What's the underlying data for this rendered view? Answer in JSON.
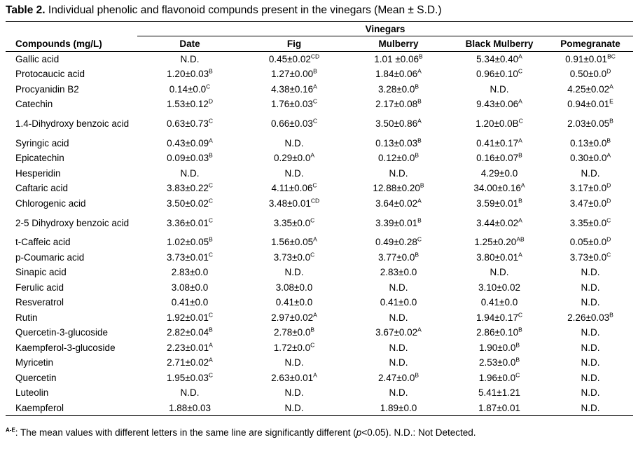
{
  "caption": {
    "label": "Table 2.",
    "text": " Individual phenolic and flavonoid compunds present in the vinegars (Mean ± S.D.)"
  },
  "group_header": "Vinegars",
  "columns": [
    "Compounds (mg/L)",
    "Date",
    "Fig",
    "Mulberry",
    "Black Mulberry",
    "Pomegranate"
  ],
  "rows": [
    {
      "name": "Gallic acid",
      "cells": [
        [
          "N.D.",
          ""
        ],
        [
          "0.45±0.02",
          "CD"
        ],
        [
          "1.01 ±0.06",
          "B"
        ],
        [
          "5.34±0.40",
          "A"
        ],
        [
          "0.91±0.01",
          "BC"
        ]
      ]
    },
    {
      "name": "Protocaucic acid",
      "cells": [
        [
          "1.20±0.03",
          "B"
        ],
        [
          "1.27±0.00",
          "B"
        ],
        [
          "1.84±0.06",
          "A"
        ],
        [
          "0.96±0.10",
          "C"
        ],
        [
          "0.50±0.0",
          "D"
        ]
      ]
    },
    {
      "name": "Procyanidin B2",
      "cells": [
        [
          "0.14±0.0",
          "C"
        ],
        [
          "4.38±0.16",
          "A"
        ],
        [
          "3.28±0.0",
          "B"
        ],
        [
          "N.D.",
          ""
        ],
        [
          "4.25±0.02",
          "A"
        ]
      ]
    },
    {
      "name": "Catechin",
      "cells": [
        [
          "1.53±0.12",
          "D"
        ],
        [
          "1.76±0.03",
          "C"
        ],
        [
          "2.17±0.08",
          "B"
        ],
        [
          "9.43±0.06",
          "A"
        ],
        [
          "0.94±0.01",
          "E"
        ]
      ]
    },
    {
      "name": "1.4-Dihydroxy benzoic acid",
      "tall": true,
      "cells": [
        [
          "0.63±0.73",
          "C"
        ],
        [
          "0.66±0.03",
          "C"
        ],
        [
          "3.50±0.86",
          "A"
        ],
        [
          "1.20±0.0B",
          "C"
        ],
        [
          "2.03±0.05",
          "B"
        ]
      ]
    },
    {
      "name": "Syringic acid",
      "cells": [
        [
          "0.43±0.09",
          "A"
        ],
        [
          "N.D.",
          ""
        ],
        [
          "0.13±0.03",
          "B"
        ],
        [
          "0.41±0.17",
          "A"
        ],
        [
          "0.13±0.0",
          "B"
        ]
      ]
    },
    {
      "name": "Epicatechin",
      "cells": [
        [
          "0.09±0.03",
          "B"
        ],
        [
          "0.29±0.0",
          "A"
        ],
        [
          "0.12±0.0",
          "B"
        ],
        [
          "0.16±0.07",
          "B"
        ],
        [
          "0.30±0.0",
          "A"
        ]
      ]
    },
    {
      "name": "Hesperidin",
      "cells": [
        [
          "N.D.",
          ""
        ],
        [
          "N.D.",
          ""
        ],
        [
          "N.D.",
          ""
        ],
        [
          "4.29±0.0",
          ""
        ],
        [
          "N.D.",
          ""
        ]
      ]
    },
    {
      "name": "Caftaric acid",
      "cells": [
        [
          "3.83±0.22",
          "C"
        ],
        [
          "4.11±0.06",
          "C"
        ],
        [
          "12.88±0.20",
          "B"
        ],
        [
          "34.00±0.16",
          "A"
        ],
        [
          "3.17±0.0",
          "D"
        ]
      ]
    },
    {
      "name": "Chlorogenic acid",
      "cells": [
        [
          "3.50±0.02",
          "C"
        ],
        [
          "3.48±0.01",
          "CD"
        ],
        [
          "3.64±0.02",
          "A"
        ],
        [
          "3.59±0.01",
          "B"
        ],
        [
          "3.47±0.0",
          "D"
        ]
      ]
    },
    {
      "name": "2-5 Dihydroxy benzoic acid",
      "tall": true,
      "cells": [
        [
          "3.36±0.01",
          "C"
        ],
        [
          "3.35±0.0",
          "C"
        ],
        [
          "3.39±0.01",
          "B"
        ],
        [
          "3.44±0.02",
          "A"
        ],
        [
          "3.35±0.0",
          "C"
        ]
      ]
    },
    {
      "name": "t-Caffeic acid",
      "cells": [
        [
          "1.02±0.05",
          "B"
        ],
        [
          "1.56±0.05",
          "A"
        ],
        [
          "0.49±0.28",
          "C"
        ],
        [
          "1.25±0.20",
          "AB"
        ],
        [
          "0.05±0.0",
          "D"
        ]
      ]
    },
    {
      "name": "p-Coumaric acid",
      "cells": [
        [
          "3.73±0.01",
          "C"
        ],
        [
          "3.73±0.0",
          "C"
        ],
        [
          "3.77±0.0",
          "B"
        ],
        [
          "3.80±0.01",
          "A"
        ],
        [
          "3.73±0.0",
          "C"
        ]
      ]
    },
    {
      "name": "Sinapic acid",
      "cells": [
        [
          "2.83±0.0",
          ""
        ],
        [
          "N.D.",
          ""
        ],
        [
          "2.83±0.0",
          ""
        ],
        [
          "N.D.",
          ""
        ],
        [
          "N.D.",
          ""
        ]
      ]
    },
    {
      "name": "Ferulic acid",
      "cells": [
        [
          "3.08±0.0",
          ""
        ],
        [
          "3.08±0.0",
          ""
        ],
        [
          "N.D.",
          ""
        ],
        [
          "3.10±0.02",
          ""
        ],
        [
          "N.D.",
          ""
        ]
      ]
    },
    {
      "name": "Resveratrol",
      "cells": [
        [
          "0.41±0.0",
          ""
        ],
        [
          "0.41±0.0",
          ""
        ],
        [
          "0.41±0.0",
          ""
        ],
        [
          "0.41±0.0",
          ""
        ],
        [
          "N.D.",
          ""
        ]
      ]
    },
    {
      "name": "Rutin",
      "cells": [
        [
          "1.92±0.01",
          "C"
        ],
        [
          "2.97±0.02",
          "A"
        ],
        [
          "N.D.",
          ""
        ],
        [
          "1.94±0.17",
          "C"
        ],
        [
          "2.26±0.03",
          "B"
        ]
      ]
    },
    {
      "name": "Quercetin-3-glucoside",
      "cells": [
        [
          "2.82±0.04",
          "B"
        ],
        [
          "2.78±0.0",
          "B"
        ],
        [
          "3.67±0.02",
          "A"
        ],
        [
          "2.86±0.10",
          "B"
        ],
        [
          "N.D.",
          ""
        ]
      ]
    },
    {
      "name": "Kaempferol-3-glucoside",
      "cells": [
        [
          "2.23±0.01",
          "A"
        ],
        [
          "1.72±0.0",
          "C"
        ],
        [
          "N.D.",
          ""
        ],
        [
          "1.90±0.0",
          "B"
        ],
        [
          "N.D.",
          ""
        ]
      ]
    },
    {
      "name": "Myricetin",
      "cells": [
        [
          "2.71±0.02",
          "A"
        ],
        [
          "N.D.",
          ""
        ],
        [
          "N.D.",
          ""
        ],
        [
          "2.53±0.0",
          "B"
        ],
        [
          "N.D.",
          ""
        ]
      ]
    },
    {
      "name": "Quercetin",
      "cells": [
        [
          "1.95±0.03",
          "C"
        ],
        [
          "2.63±0.01",
          "A"
        ],
        [
          "2.47±0.0",
          "B"
        ],
        [
          "1.96±0.0",
          "C"
        ],
        [
          "N.D.",
          ""
        ]
      ]
    },
    {
      "name": "Luteolin",
      "cells": [
        [
          "N.D.",
          ""
        ],
        [
          "N.D.",
          ""
        ],
        [
          "N.D.",
          ""
        ],
        [
          "5.41±1.21",
          ""
        ],
        [
          "N.D.",
          ""
        ]
      ]
    },
    {
      "name": "Kaempferol",
      "cells": [
        [
          "1.88±0.03",
          ""
        ],
        [
          "N.D.",
          ""
        ],
        [
          "1.89±0.0",
          ""
        ],
        [
          "1.87±0.01",
          ""
        ],
        [
          "N.D.",
          ""
        ]
      ]
    }
  ],
  "footnote": {
    "mark": "A-E",
    "text_before": ": The mean values with different letters in the same line are significantly different (",
    "italic": "p",
    "text_after": "<0.05). N.D.: Not Detected."
  }
}
